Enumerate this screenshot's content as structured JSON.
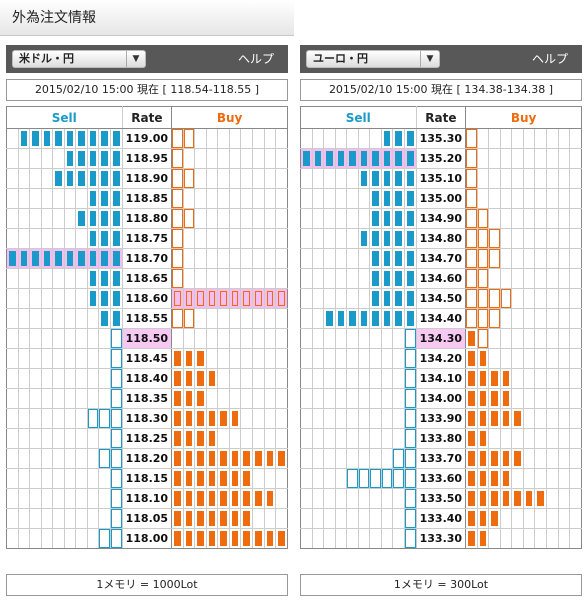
{
  "page_title": "外為注文情報",
  "legend": {
    "sell": "Sell",
    "rate": "Rate",
    "buy": "Buy"
  },
  "panels": [
    {
      "id": "usd",
      "pair": "米ドル・円",
      "help": "ヘルプ",
      "time": "2015/02/10  15:00 現在 [ 118.54-118.55 ]",
      "lot": "1メモリ = 1000Lot",
      "current_rate": "118.50",
      "highlight_sell_rate": "118.70",
      "highlight_buy_rate": "118.60",
      "rows": [
        {
          "rate": "119.00",
          "sell_filled": 9,
          "sell_outline": 0,
          "buy_filled": 0,
          "buy_outline": 2
        },
        {
          "rate": "118.95",
          "sell_filled": 5,
          "sell_outline": 0,
          "buy_filled": 0,
          "buy_outline": 1
        },
        {
          "rate": "118.90",
          "sell_filled": 6,
          "sell_outline": 0,
          "buy_filled": 0,
          "buy_outline": 2
        },
        {
          "rate": "118.85",
          "sell_filled": 3,
          "sell_outline": 0,
          "buy_filled": 0,
          "buy_outline": 1
        },
        {
          "rate": "118.80",
          "sell_filled": 4,
          "sell_outline": 0,
          "buy_filled": 0,
          "buy_outline": 2
        },
        {
          "rate": "118.75",
          "sell_filled": 3,
          "sell_outline": 0,
          "buy_filled": 0,
          "buy_outline": 1
        },
        {
          "rate": "118.70",
          "sell_filled": 10,
          "sell_outline": 0,
          "buy_filled": 0,
          "buy_outline": 1
        },
        {
          "rate": "118.65",
          "sell_filled": 3,
          "sell_outline": 0,
          "buy_filled": 0,
          "buy_outline": 1
        },
        {
          "rate": "118.60",
          "sell_filled": 3,
          "sell_outline": 0,
          "buy_filled": 0,
          "buy_outline": 10
        },
        {
          "rate": "118.55",
          "sell_filled": 2,
          "sell_outline": 0,
          "buy_filled": 0,
          "buy_outline": 2
        },
        {
          "rate": "118.50",
          "sell_filled": 0,
          "sell_outline": 1,
          "buy_filled": 0,
          "buy_outline": 0
        },
        {
          "rate": "118.45",
          "sell_filled": 0,
          "sell_outline": 1,
          "buy_filled": 3,
          "buy_outline": 0
        },
        {
          "rate": "118.40",
          "sell_filled": 0,
          "sell_outline": 1,
          "buy_filled": 4,
          "buy_outline": 0
        },
        {
          "rate": "118.35",
          "sell_filled": 0,
          "sell_outline": 1,
          "buy_filled": 3,
          "buy_outline": 0
        },
        {
          "rate": "118.30",
          "sell_filled": 0,
          "sell_outline": 3,
          "buy_filled": 6,
          "buy_outline": 0
        },
        {
          "rate": "118.25",
          "sell_filled": 0,
          "sell_outline": 1,
          "buy_filled": 4,
          "buy_outline": 0
        },
        {
          "rate": "118.20",
          "sell_filled": 0,
          "sell_outline": 2,
          "buy_filled": 10,
          "buy_outline": 0
        },
        {
          "rate": "118.15",
          "sell_filled": 0,
          "sell_outline": 1,
          "buy_filled": 7,
          "buy_outline": 0
        },
        {
          "rate": "118.10",
          "sell_filled": 0,
          "sell_outline": 1,
          "buy_filled": 9,
          "buy_outline": 0
        },
        {
          "rate": "118.05",
          "sell_filled": 0,
          "sell_outline": 1,
          "buy_filled": 7,
          "buy_outline": 0
        },
        {
          "rate": "118.00",
          "sell_filled": 0,
          "sell_outline": 2,
          "buy_filled": 10,
          "buy_outline": 0
        }
      ]
    },
    {
      "id": "eur",
      "pair": "ユーロ・円",
      "help": "ヘルプ",
      "time": "2015/02/10  15:00 現在 [ 134.38-134.38 ]",
      "lot": "1メモリ = 300Lot",
      "current_rate": "134.30",
      "highlight_sell_rate": "135.20",
      "highlight_buy_rate": "",
      "rows": [
        {
          "rate": "135.30",
          "sell_filled": 3,
          "sell_outline": 0,
          "buy_filled": 0,
          "buy_outline": 1
        },
        {
          "rate": "135.20",
          "sell_filled": 10,
          "sell_outline": 0,
          "buy_filled": 0,
          "buy_outline": 1
        },
        {
          "rate": "135.10",
          "sell_filled": 5,
          "sell_outline": 0,
          "buy_filled": 0,
          "buy_outline": 1
        },
        {
          "rate": "135.00",
          "sell_filled": 4,
          "sell_outline": 0,
          "buy_filled": 0,
          "buy_outline": 1
        },
        {
          "rate": "134.90",
          "sell_filled": 4,
          "sell_outline": 0,
          "buy_filled": 0,
          "buy_outline": 2
        },
        {
          "rate": "134.80",
          "sell_filled": 5,
          "sell_outline": 0,
          "buy_filled": 0,
          "buy_outline": 3
        },
        {
          "rate": "134.70",
          "sell_filled": 4,
          "sell_outline": 0,
          "buy_filled": 0,
          "buy_outline": 3
        },
        {
          "rate": "134.60",
          "sell_filled": 4,
          "sell_outline": 0,
          "buy_filled": 0,
          "buy_outline": 2
        },
        {
          "rate": "134.50",
          "sell_filled": 4,
          "sell_outline": 0,
          "buy_filled": 0,
          "buy_outline": 4
        },
        {
          "rate": "134.40",
          "sell_filled": 8,
          "sell_outline": 0,
          "buy_filled": 0,
          "buy_outline": 3
        },
        {
          "rate": "134.30",
          "sell_filled": 0,
          "sell_outline": 1,
          "buy_filled": 1,
          "buy_outline": 1
        },
        {
          "rate": "134.20",
          "sell_filled": 0,
          "sell_outline": 1,
          "buy_filled": 2,
          "buy_outline": 0
        },
        {
          "rate": "134.10",
          "sell_filled": 0,
          "sell_outline": 1,
          "buy_filled": 4,
          "buy_outline": 0
        },
        {
          "rate": "134.00",
          "sell_filled": 0,
          "sell_outline": 1,
          "buy_filled": 4,
          "buy_outline": 0
        },
        {
          "rate": "133.90",
          "sell_filled": 0,
          "sell_outline": 1,
          "buy_filled": 5,
          "buy_outline": 0
        },
        {
          "rate": "133.80",
          "sell_filled": 0,
          "sell_outline": 1,
          "buy_filled": 2,
          "buy_outline": 0
        },
        {
          "rate": "133.70",
          "sell_filled": 0,
          "sell_outline": 2,
          "buy_filled": 5,
          "buy_outline": 0
        },
        {
          "rate": "133.60",
          "sell_filled": 0,
          "sell_outline": 6,
          "buy_filled": 4,
          "buy_outline": 0
        },
        {
          "rate": "133.50",
          "sell_filled": 0,
          "sell_outline": 1,
          "buy_filled": 7,
          "buy_outline": 0
        },
        {
          "rate": "133.40",
          "sell_filled": 0,
          "sell_outline": 1,
          "buy_filled": 3,
          "buy_outline": 0
        },
        {
          "rate": "133.30",
          "sell_filled": 0,
          "sell_outline": 1,
          "buy_filled": 2,
          "buy_outline": 0
        }
      ]
    }
  ],
  "colors": {
    "sell": "#1a9ac9",
    "buy": "#ee6b0e",
    "highlight": "#f4bff0",
    "header_bar": "#585858"
  }
}
